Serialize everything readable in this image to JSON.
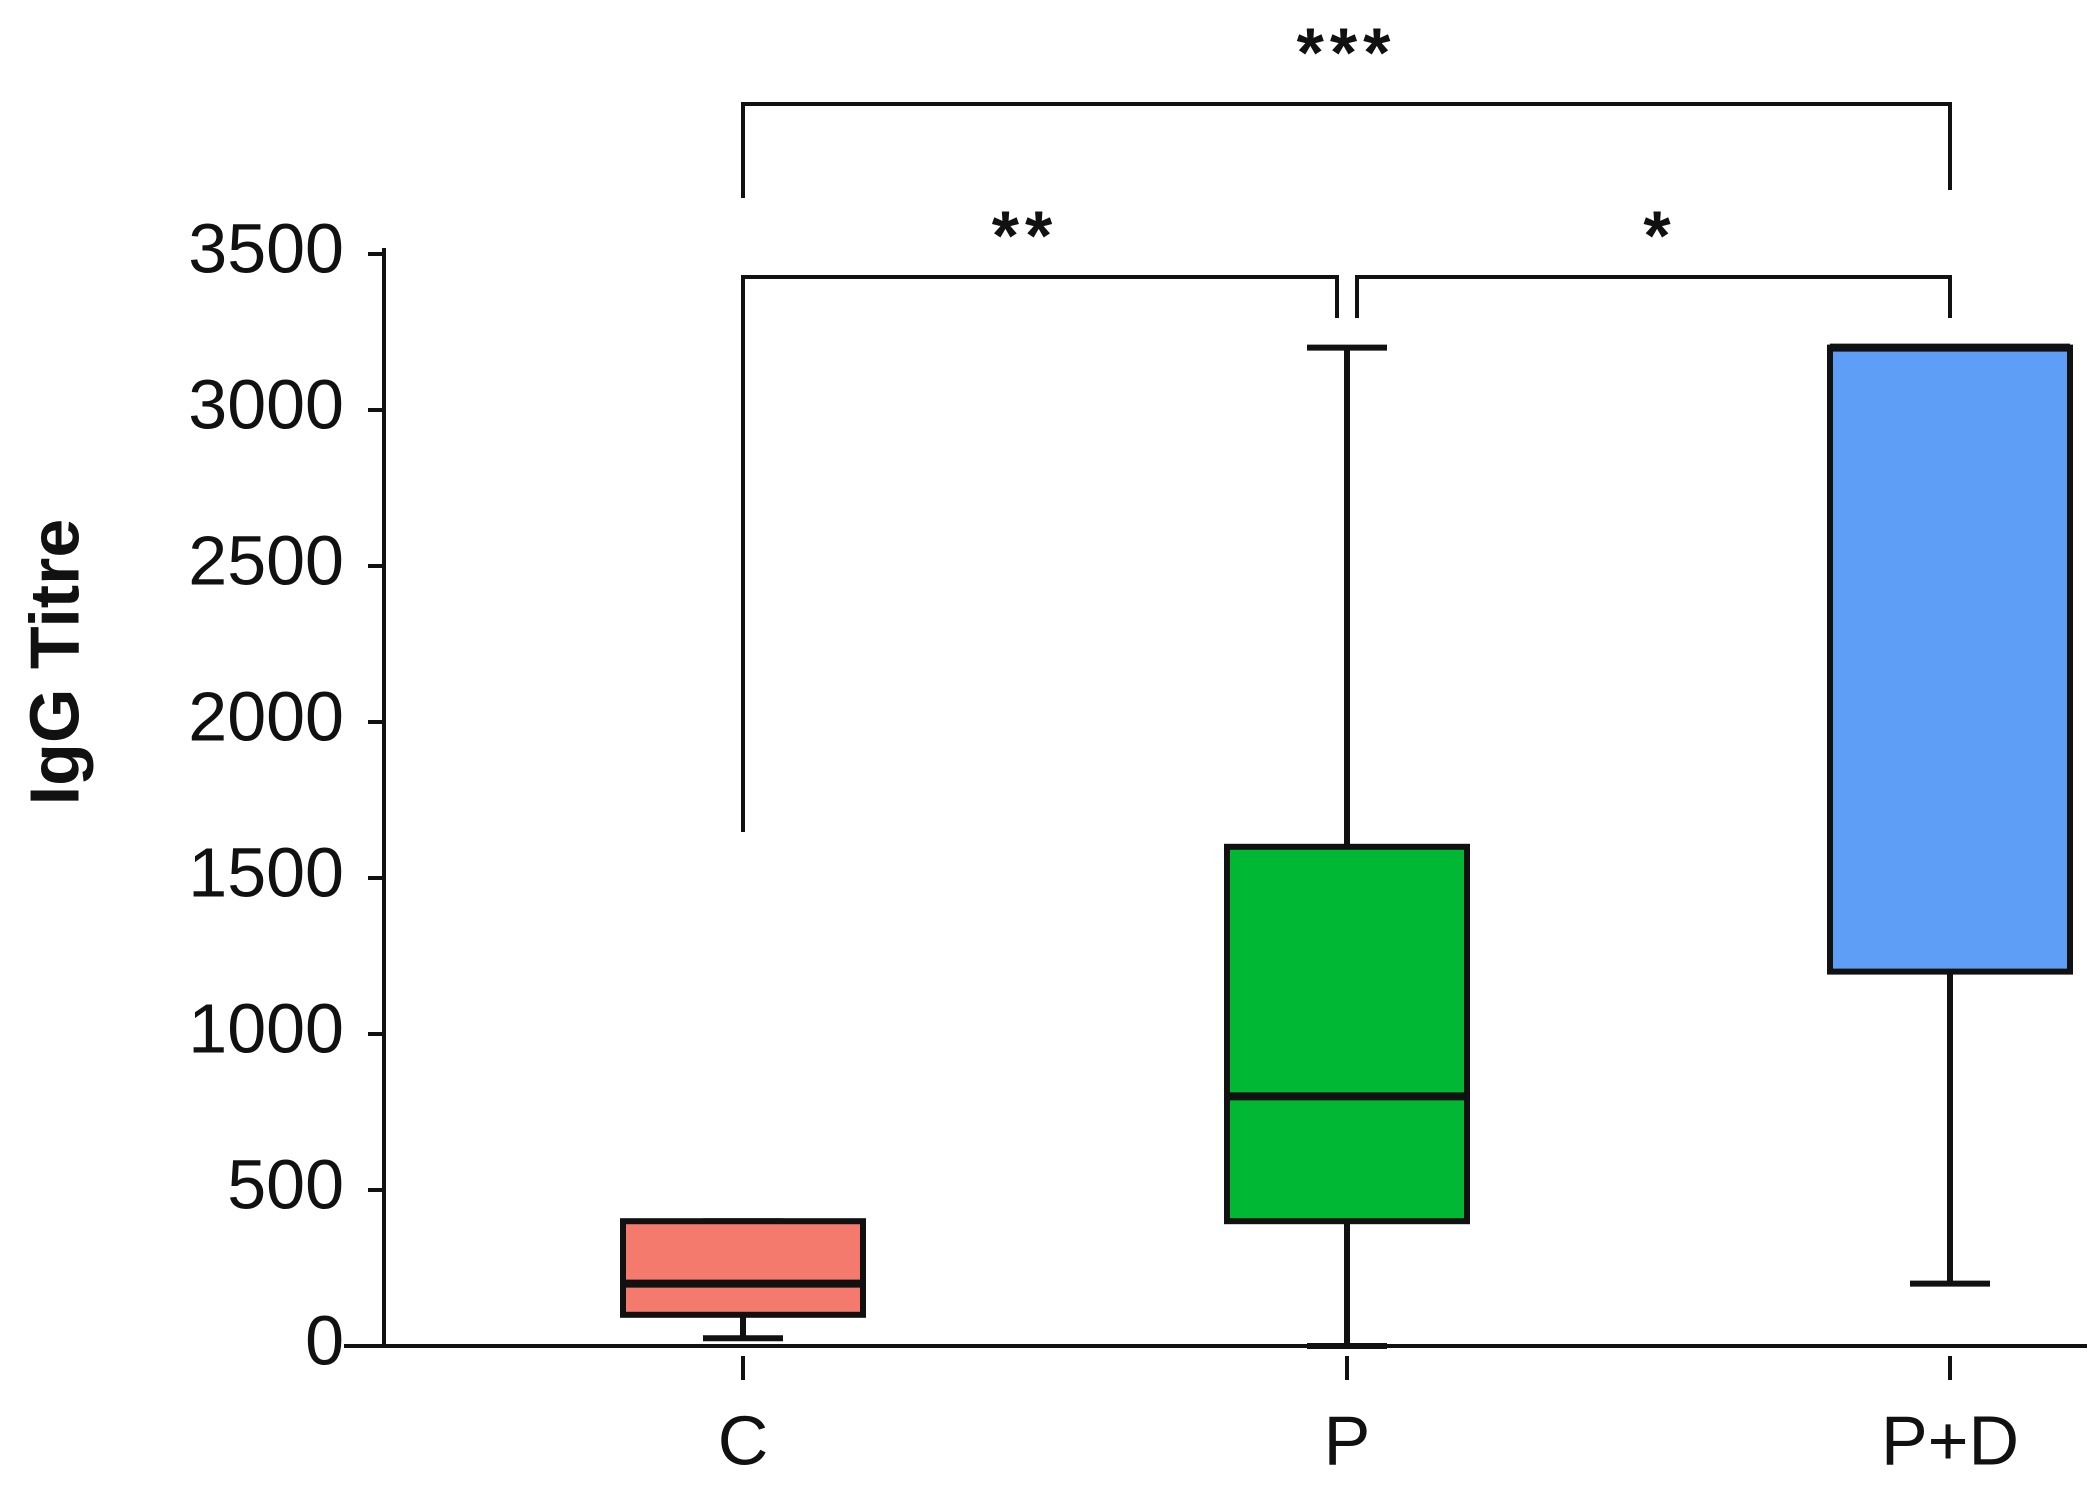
{
  "chart_data": {
    "type": "box",
    "y_label": "IgG Titre",
    "categories": [
      "C",
      "P",
      "P+D"
    ],
    "boxes": [
      {
        "min": 25,
        "q1": 100,
        "median": 200,
        "q3": 400,
        "max": 400,
        "color": "#f47a6e"
      },
      {
        "min": 0,
        "q1": 400,
        "median": 800,
        "q3": 1600,
        "max": 3200,
        "color": "#00b834"
      },
      {
        "min": 200,
        "q1": 1200,
        "median": 3200,
        "q3": 3200,
        "max": 3200,
        "color": "#5f9ef7"
      }
    ],
    "ylim": [
      0,
      3500
    ],
    "yticks": [
      0,
      500,
      1000,
      1500,
      2000,
      2500,
      3000,
      3500
    ],
    "annotations": [
      "***",
      "**",
      "*"
    ]
  }
}
